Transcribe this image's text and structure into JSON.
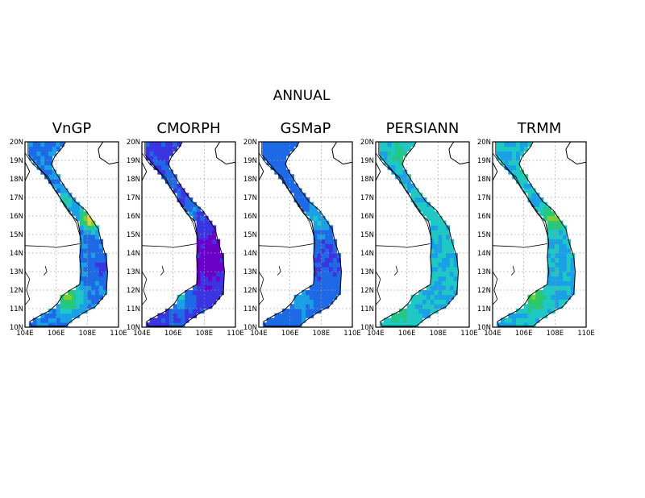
{
  "title": "ANNUAL",
  "panels": [
    {
      "name": "VnGP",
      "scheme": "vngp"
    },
    {
      "name": "CMORPH",
      "scheme": "cmorph"
    },
    {
      "name": "GSMaP",
      "scheme": "gsmap"
    },
    {
      "name": "PERSIANN",
      "scheme": "persiann"
    },
    {
      "name": "TRMM",
      "scheme": "trmm"
    }
  ],
  "lat_labels": [
    "20N",
    "19N",
    "18N",
    "17N",
    "16N",
    "15N",
    "14N",
    "13N",
    "12N",
    "11N",
    "10N"
  ],
  "lon_labels": [
    "104E",
    "106E",
    "108E",
    "110E"
  ],
  "extent": {
    "lon": [
      104,
      110
    ],
    "lat": [
      10,
      20
    ]
  },
  "palette": [
    "#6a00c8",
    "#3a35e0",
    "#1e6ae6",
    "#1aa0e6",
    "#1ec8c4",
    "#22c88a",
    "#2ec864",
    "#7ad232",
    "#c8dc32",
    "#e6d232"
  ]
}
